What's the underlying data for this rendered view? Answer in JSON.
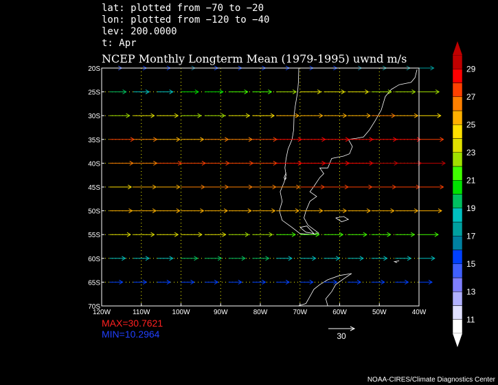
{
  "header": {
    "lat": "lat: plotted from −70 to −20",
    "lon": "lon: plotted from −120 to −40",
    "lev": "lev: 200.0000",
    "t": "t: Apr"
  },
  "title": "NCEP Monthly Longterm Mean (1979-1995) uwnd m/s",
  "stats": {
    "max": "MAX=30.7621",
    "min": "MIN=10.2964"
  },
  "ref_vector_label": "30",
  "credit": "NOAA-CIRES/Climate Diagnostics Center",
  "colors": {
    "max_text": "#ff2020",
    "min_text": "#2040ff",
    "grid": "#ffff00",
    "coast": "#ffffff"
  },
  "chart_data": {
    "type": "vector",
    "xlim": [
      -120,
      -40
    ],
    "ylim": [
      -70,
      -20
    ],
    "x_ticks": [
      -120,
      -110,
      -100,
      -90,
      -80,
      -70,
      -60,
      -50,
      -40
    ],
    "x_tick_labels": [
      "120W",
      "110W",
      "100W",
      "90W",
      "80W",
      "70W",
      "60W",
      "50W",
      "40W"
    ],
    "y_ticks": [
      -20,
      -25,
      -30,
      -35,
      -40,
      -45,
      -50,
      -55,
      -60,
      -65,
      -70
    ],
    "y_tick_labels": [
      "20S",
      "25S",
      "30S",
      "35S",
      "40S",
      "45S",
      "50S",
      "55S",
      "60S",
      "65S",
      "70S"
    ],
    "grid": true,
    "colorbar": {
      "labels": [
        "11",
        "13",
        "15",
        "17",
        "19",
        "21",
        "23",
        "25",
        "27",
        "29"
      ],
      "colors": [
        "#ffffff",
        "#e0e0ff",
        "#b0b0ff",
        "#8080ff",
        "#4060ff",
        "#0040ff",
        "#0080a0",
        "#00a0a0",
        "#00c0c0",
        "#00c060",
        "#00e000",
        "#40ff00",
        "#a0e000",
        "#e0e000",
        "#ffe000",
        "#ffb000",
        "#ff8000",
        "#ff4000",
        "#ff0000",
        "#c00000"
      ]
    },
    "vector_lons": [
      -118,
      -112,
      -106,
      -100,
      -94,
      -88,
      -82,
      -76,
      -70,
      -64,
      -58,
      -52,
      -46,
      -40
    ],
    "rows": [
      {
        "lat": -20,
        "speed": [
          14,
          15,
          15,
          16,
          15,
          15,
          15,
          15,
          15,
          15,
          16,
          17,
          17,
          17
        ]
      },
      {
        "lat": -25,
        "speed": [
          19,
          18,
          18,
          20,
          21,
          22,
          22,
          23,
          24,
          24,
          24,
          23,
          23,
          23
        ]
      },
      {
        "lat": -30,
        "speed": [
          23,
          24,
          24,
          23,
          23,
          24,
          25,
          26,
          26,
          26,
          26,
          27,
          26,
          25
        ]
      },
      {
        "lat": -35,
        "speed": [
          28,
          27,
          26,
          26,
          27,
          27,
          28,
          29,
          29,
          29,
          29,
          29,
          29,
          28
        ]
      },
      {
        "lat": -40,
        "speed": [
          27,
          27,
          28,
          28,
          28,
          28,
          28,
          29,
          29,
          29,
          29,
          30,
          30,
          30
        ]
      },
      {
        "lat": -45,
        "speed": [
          25,
          26,
          26,
          27,
          27,
          27,
          27,
          27,
          28,
          28,
          28,
          28,
          28,
          28
        ]
      },
      {
        "lat": -50,
        "speed": [
          26,
          26,
          26,
          26,
          26,
          26,
          26,
          26,
          26,
          26,
          26,
          26,
          26,
          26
        ]
      },
      {
        "lat": -55,
        "speed": [
          24,
          24,
          24,
          24,
          24,
          23,
          23,
          22,
          22,
          22,
          22,
          22,
          22,
          22
        ]
      },
      {
        "lat": -60,
        "speed": [
          18,
          18,
          18,
          19,
          19,
          19,
          19,
          18,
          18,
          18,
          18,
          18,
          18,
          18
        ]
      },
      {
        "lat": -65,
        "speed": [
          15,
          15,
          15,
          15,
          15,
          15,
          15,
          15,
          15,
          15,
          15,
          15,
          15,
          15
        ]
      }
    ]
  }
}
